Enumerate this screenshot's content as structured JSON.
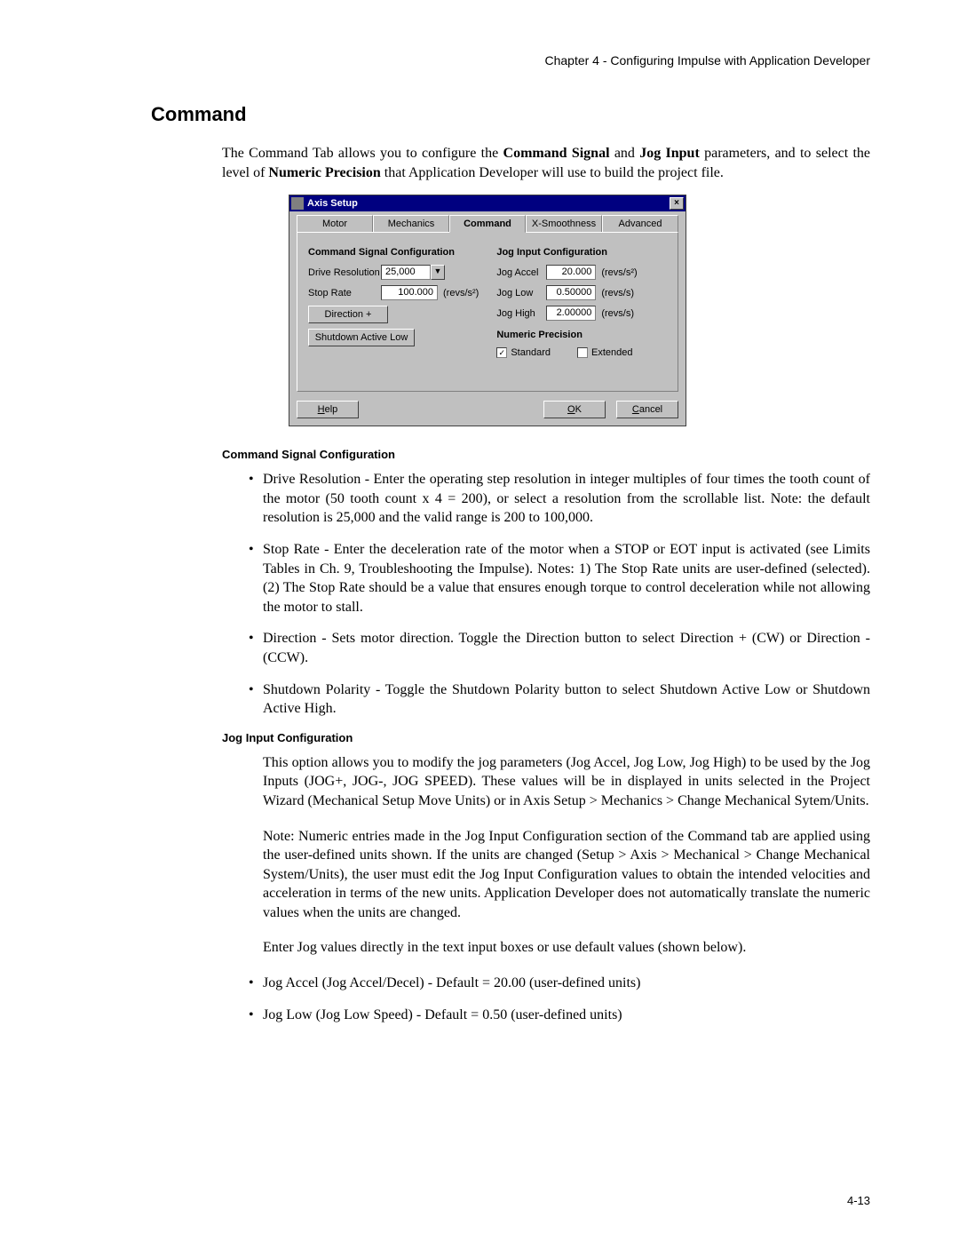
{
  "header": "Chapter 4 - Configuring Impulse with Application Developer",
  "section_title": "Command",
  "intro_html": "The Command Tab allows you to configure the <span class=\"b\">Command Signal</span> and <span class=\"b\">Jog Input</span> parameters, and to select the level of <span class=\"b\">Numeric Precision</span> that Application Developer will use to build the project file.",
  "dialog": {
    "title": "Axis Setup",
    "tabs": [
      "Motor",
      "Mechanics",
      "Command",
      "X-Smoothness",
      "Advanced"
    ],
    "active_tab": 2,
    "cmd_sig": {
      "title": "Command Signal Configuration",
      "drive_res_label": "Drive Resolution",
      "drive_res_value": "25,000",
      "stop_rate_label": "Stop Rate",
      "stop_rate_value": "100.000",
      "stop_rate_unit": "(revs/s²)",
      "direction_btn": "Direction +",
      "shutdown_btn": "Shutdown Active Low"
    },
    "jog": {
      "title": "Jog Input Configuration",
      "rows": [
        {
          "label": "Jog Accel",
          "value": "20.000",
          "unit": "(revs/s²)"
        },
        {
          "label": "Jog Low",
          "value": "0.50000",
          "unit": "(revs/s)"
        },
        {
          "label": "Jog High",
          "value": "2.00000",
          "unit": "(revs/s)"
        }
      ]
    },
    "numprec": {
      "title": "Numeric Precision",
      "standard": "Standard",
      "extended": "Extended"
    },
    "buttons": {
      "help": "Help",
      "ok": "OK",
      "cancel": "Cancel"
    }
  },
  "csc_heading": "Command Signal Configuration",
  "csc_bullets": [
    "<span class=\"b\">Drive Resolution</span> - Enter the operating step resolution in integer multiples of four times the tooth count of the motor (50 tooth count x 4 = 200), or select a resolution from the scrollable list. Note: the default resolution is 25,000 and the valid range is 200 to 100,000.",
    "<span class=\"b\">Stop Rate</span> - Enter the <span class=\"i\">deceleration rate</span> of the motor when a STOP or EOT input is activated (see Limits Tables in Ch. 9, <span class=\"i\">Troubleshooting the Impulse</span>). <span class=\"b\">Notes</span>: 1) The Stop Rate units are user-defined (selected).  (2) The Stop Rate should be a value that ensures enough torque to control deceleration while not allowing the motor to stall.",
    "<span class=\"b\">Direction</span> - Sets motor direction. Toggle the Direction button to select Direction + (CW) or Direction - (CCW).",
    "<span class=\"b\">Shutdown Polarity</span> - Toggle the Shutdown Polarity button to select <span class=\"b\">Shutdown Active Low</span> or <span class=\"b\">Shutdown Active High</span>."
  ],
  "jic_heading": "Jog Input Configuration",
  "jic_para1": " This option allows you to modify the jog parameters (Jog Accel, Jog Low, Jog High) to be used by the Jog Inputs (JOG+, JOG-, JOG SPEED). These values will be in displayed in units selected in the Project Wizard (Mechanical Setup Move Units) or in Axis Setup > Mechanics > Change Mechanical Sytem/Units.",
  "jic_para2": "<span class=\"b\">Note</span>: Numeric entries made in the <span class=\"b\">Jog Input Configuration</span> section of the Command tab are applied using the user-defined units shown. If the units are changed (Setup > Axis > Mechanical > Change Mechanical System/Units), the user must edit the <span class=\"b\">Jog Input Configuration</span> values to obtain the intended velocities and acceleration in terms of the new units. Application Developer does not automatically translate the numeric values when the units are changed.",
  "jic_para3": "Enter Jog values directly in the text input boxes or use default values (shown below).",
  "jic_bullets": [
    "<span class=\"b\">Jog Accel</span> (Jog Accel/Decel) - Default = 20.00 (user-defined units)",
    "<span class=\"b\">Jog Low</span> (Jog Low Speed) - Default = 0.50 (user-defined units)"
  ],
  "page_number": "4-13"
}
